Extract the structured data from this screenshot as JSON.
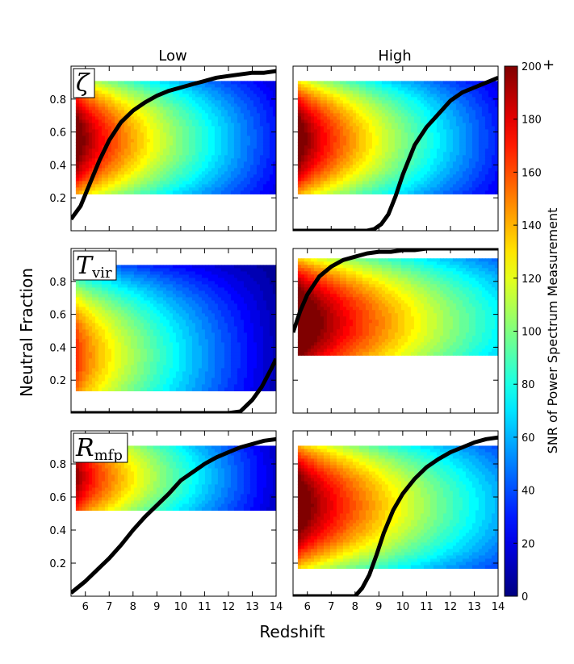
{
  "chart_data": {
    "type": "heatmap",
    "xlabel": "Redshift",
    "ylabel": "Neutral Fraction",
    "colorbar_label": "SNR of Power Spectrum Measurement",
    "colorbar_ticks": [
      "0",
      "20",
      "40",
      "60",
      "80",
      "100",
      "120",
      "140",
      "160",
      "180",
      "200"
    ],
    "colorbar_range": [
      0,
      200
    ],
    "colorbar_overflow_mark": "+",
    "column_titles": [
      "Low",
      "High"
    ],
    "xlim": [
      5.4,
      14
    ],
    "ylim": [
      0,
      1
    ],
    "x_ticks": [
      "6",
      "7",
      "8",
      "9",
      "10",
      "11",
      "12",
      "13",
      "14"
    ],
    "y_ticks": [
      "0.2",
      "0.4",
      "0.6",
      "0.8"
    ],
    "panels": [
      {
        "row": 0,
        "col": 0,
        "param_symbol": "ζ",
        "param_sub": "",
        "snr_region": {
          "x": [
            5.6,
            14
          ],
          "y": [
            0.23,
            0.91
          ]
        },
        "snr_model": {
          "peak": 215,
          "x_decay": 16,
          "x_end_snr": 28,
          "y_center": 0.55,
          "y_spread": 0.42
        },
        "neutral_fraction_curve": {
          "x": [
            5.4,
            5.8,
            6.2,
            6.6,
            7.0,
            7.5,
            8.0,
            8.5,
            9.0,
            9.5,
            10.0,
            10.5,
            11.0,
            11.5,
            12.0,
            13.0,
            13.5,
            14.0
          ],
          "y": [
            0.07,
            0.15,
            0.29,
            0.43,
            0.55,
            0.66,
            0.73,
            0.78,
            0.82,
            0.85,
            0.87,
            0.89,
            0.91,
            0.93,
            0.94,
            0.96,
            0.96,
            0.97
          ]
        }
      },
      {
        "row": 0,
        "col": 1,
        "param_symbol": "",
        "param_sub": "",
        "snr_region": {
          "x": [
            5.6,
            14
          ],
          "y": [
            0.23,
            0.91
          ]
        },
        "snr_model": {
          "peak": 215,
          "x_decay": 12,
          "x_end_snr": 30,
          "y_center": 0.55,
          "y_spread": 0.42
        },
        "neutral_fraction_curve": {
          "x": [
            5.4,
            8.5,
            8.8,
            9.1,
            9.4,
            9.7,
            10.0,
            10.5,
            11.0,
            11.5,
            12.0,
            12.5,
            13.0,
            13.5,
            14.0
          ],
          "y": [
            0.0,
            0.0,
            0.01,
            0.04,
            0.1,
            0.21,
            0.34,
            0.52,
            0.63,
            0.71,
            0.79,
            0.84,
            0.87,
            0.9,
            0.93
          ]
        }
      },
      {
        "row": 1,
        "col": 0,
        "param_symbol": "T",
        "param_sub": "vir",
        "snr_region": {
          "x": [
            5.6,
            14
          ],
          "y": [
            0.15,
            0.9
          ]
        },
        "snr_model": {
          "peak": 170,
          "x_decay": 14,
          "x_end_snr": 10,
          "y_center": 0.35,
          "y_spread": 0.5
        },
        "neutral_fraction_curve": {
          "x": [
            5.4,
            12.0,
            12.5,
            13.0,
            13.4,
            13.8,
            14.0
          ],
          "y": [
            0.0,
            0.0,
            0.01,
            0.08,
            0.16,
            0.27,
            0.33
          ]
        }
      },
      {
        "row": 1,
        "col": 1,
        "param_symbol": "",
        "param_sub": "",
        "snr_region": {
          "x": [
            5.6,
            14
          ],
          "y": [
            0.37,
            0.94
          ]
        },
        "snr_model": {
          "peak": 230,
          "x_decay": 10,
          "x_end_snr": 75,
          "y_center": 0.55,
          "y_spread": 0.45
        },
        "neutral_fraction_curve": {
          "x": [
            5.4,
            5.7,
            6.0,
            6.5,
            7.0,
            7.5,
            8.0,
            8.5,
            9.0,
            9.5,
            10.0,
            10.5,
            11.0,
            12.0,
            13.0,
            14.0
          ],
          "y": [
            0.49,
            0.62,
            0.72,
            0.83,
            0.89,
            0.93,
            0.95,
            0.97,
            0.98,
            0.98,
            0.99,
            0.99,
            1.0,
            1.0,
            1.0,
            1.0
          ]
        }
      },
      {
        "row": 2,
        "col": 0,
        "param_symbol": "R",
        "param_sub": "mfp",
        "snr_region": {
          "x": [
            5.6,
            14
          ],
          "y": [
            0.53,
            0.91
          ]
        },
        "snr_model": {
          "peak": 200,
          "x_decay": 17,
          "x_end_snr": 15,
          "y_center": 0.72,
          "y_spread": 0.35
        },
        "neutral_fraction_curve": {
          "x": [
            5.4,
            6.0,
            6.5,
            7.0,
            7.5,
            8.0,
            8.5,
            9.0,
            9.5,
            10.0,
            10.5,
            11.0,
            11.5,
            12.0,
            12.5,
            13.0,
            13.5,
            14.0
          ],
          "y": [
            0.02,
            0.09,
            0.16,
            0.23,
            0.31,
            0.4,
            0.48,
            0.55,
            0.62,
            0.7,
            0.75,
            0.8,
            0.84,
            0.87,
            0.9,
            0.92,
            0.94,
            0.95
          ]
        }
      },
      {
        "row": 2,
        "col": 1,
        "param_symbol": "",
        "param_sub": "",
        "snr_region": {
          "x": [
            5.6,
            14
          ],
          "y": [
            0.17,
            0.91
          ]
        },
        "snr_model": {
          "peak": 220,
          "x_decay": 12,
          "x_end_snr": 60,
          "y_center": 0.55,
          "y_spread": 0.45
        },
        "neutral_fraction_curve": {
          "x": [
            5.4,
            8.0,
            8.3,
            8.6,
            8.9,
            9.2,
            9.6,
            10.0,
            10.5,
            11.0,
            11.5,
            12.0,
            12.5,
            13.0,
            13.5,
            14.0
          ],
          "y": [
            0.0,
            0.0,
            0.05,
            0.13,
            0.25,
            0.38,
            0.52,
            0.62,
            0.71,
            0.78,
            0.83,
            0.87,
            0.9,
            0.93,
            0.95,
            0.96
          ]
        }
      }
    ]
  }
}
